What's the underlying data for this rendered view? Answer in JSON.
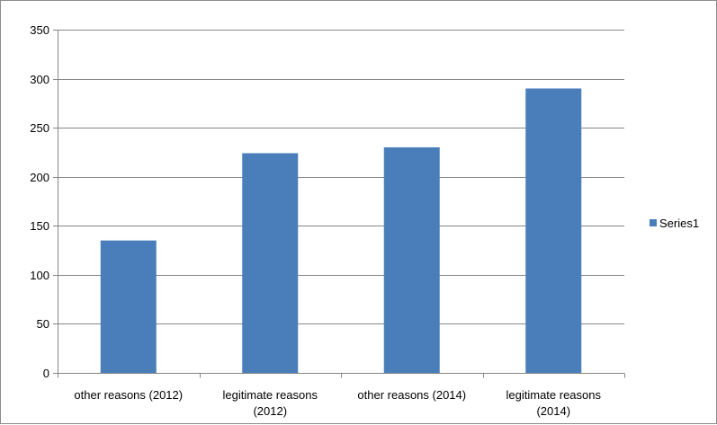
{
  "chart_data": {
    "type": "bar",
    "categories": [
      [
        "other reasons (2012)"
      ],
      [
        "legitimate reasons",
        "(2012)"
      ],
      [
        "other reasons (2014)"
      ],
      [
        "legitimate reasons",
        "(2014)"
      ]
    ],
    "series": [
      {
        "name": "Series1",
        "values": [
          135,
          224,
          230,
          290
        ],
        "color": "#4a7ebb"
      }
    ],
    "ylim": [
      0,
      350
    ],
    "yticks": [
      0,
      50,
      100,
      150,
      200,
      250,
      300,
      350
    ],
    "grid": true,
    "legend": "right",
    "title": "",
    "xlabel": "",
    "ylabel": ""
  }
}
